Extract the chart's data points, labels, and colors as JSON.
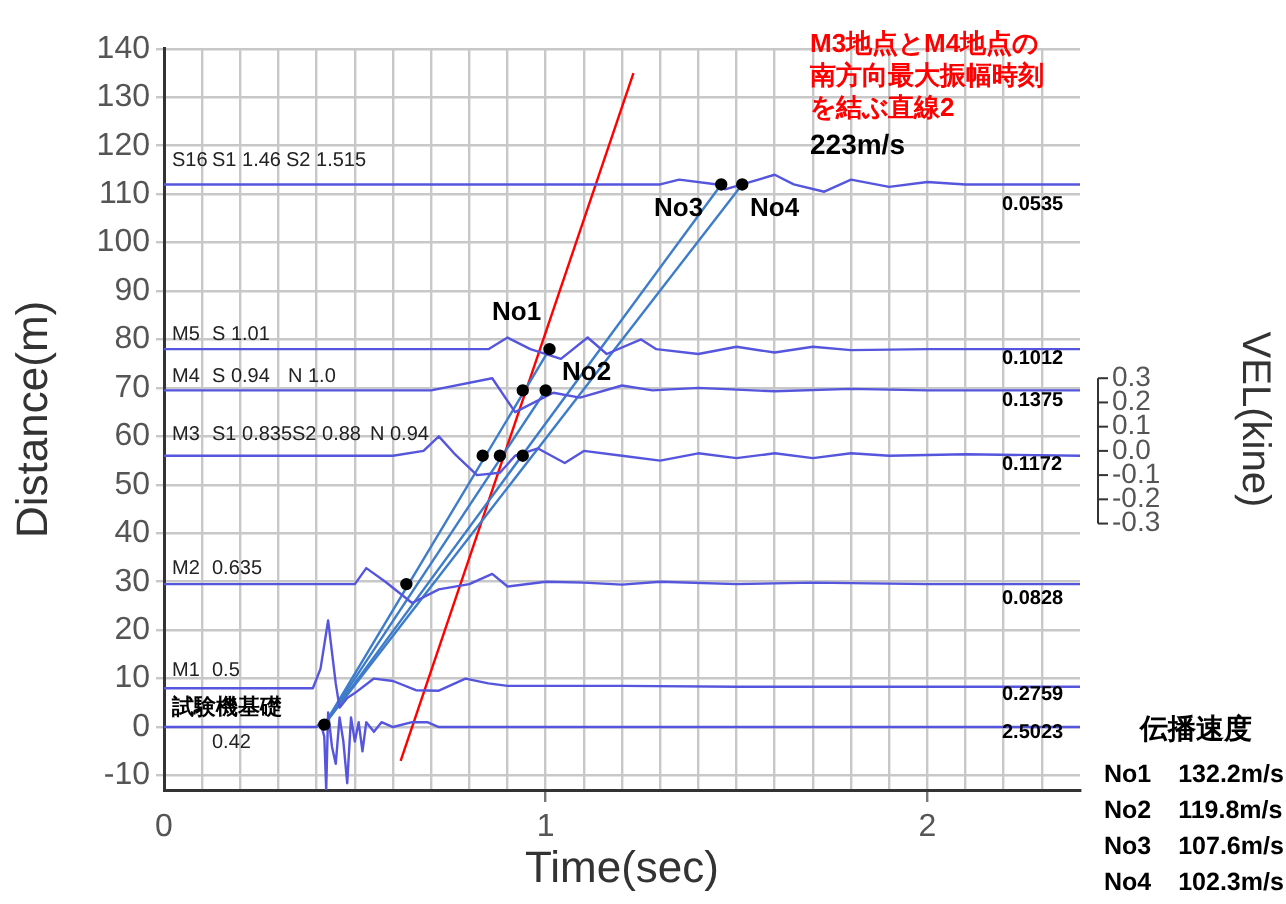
{
  "chart_data": {
    "type": "line",
    "xlabel": "Time(sec)",
    "ylabel": "Distance(m)",
    "y2label": "VEL(kine)",
    "xlim": [
      0,
      2.4
    ],
    "ylim": [
      -13,
      140
    ],
    "y2lim": [
      -1.4,
      1.66
    ],
    "xticks": [
      0,
      {
        "value": 0.1,
        "label": null
      },
      {
        "value": 0.2,
        "label": null
      },
      {
        "value": 0.3,
        "label": null
      },
      {
        "value": 0.4,
        "label": null
      },
      {
        "value": 0.5,
        "label": null
      },
      {
        "value": 0.6,
        "label": null
      },
      {
        "value": 0.7,
        "label": null
      },
      {
        "value": 0.8,
        "label": null
      },
      {
        "value": 0.9,
        "label": null
      },
      1,
      {
        "value": 1.1,
        "label": null
      },
      {
        "value": 1.2,
        "label": null
      },
      {
        "value": 1.3,
        "label": null
      },
      {
        "value": 1.4,
        "label": null
      },
      {
        "value": 1.5,
        "label": null
      },
      {
        "value": 1.6,
        "label": null
      },
      {
        "value": 1.7,
        "label": null
      },
      {
        "value": 1.8,
        "label": null
      },
      {
        "value": 1.9,
        "label": null
      },
      2,
      {
        "value": 2.1,
        "label": null
      },
      {
        "value": 2.2,
        "label": null
      },
      {
        "value": 2.3,
        "label": null
      }
    ],
    "yticks": [
      -10,
      0,
      10,
      20,
      30,
      40,
      50,
      60,
      70,
      80,
      90,
      100,
      110,
      120,
      130,
      140
    ],
    "y2ticks": [
      0.3,
      0.2,
      0.1,
      {
        "value": 0,
        "label": "0.0"
      },
      -0.1,
      -0.2,
      -0.3
    ],
    "grid": true,
    "legend": false,
    "marker": "none",
    "line_style": "solid",
    "series": [
      {
        "color": "#5555dd",
        "x": [
          0,
          0.4,
          0.41,
          0.42,
          0.425,
          0.43,
          0.44,
          0.45,
          0.46,
          0.47,
          0.48,
          0.49,
          0.5,
          0.51,
          0.52,
          0.53,
          0.55,
          0.57,
          0.6,
          0.65,
          0.69,
          0.72,
          0.75,
          2.4
        ],
        "values": [
          0,
          0,
          1,
          -2,
          -13,
          3,
          -4,
          -7.6,
          2,
          -3,
          -11.6,
          2,
          -3,
          1,
          -5,
          1,
          -1,
          1,
          0,
          1,
          1,
          0,
          0,
          0
        ]
      },
      {
        "color": "#5555dd",
        "x": [
          0,
          0.39,
          0.41,
          0.43,
          0.45,
          0.46,
          0.48,
          0.5,
          0.55,
          0.6,
          0.66,
          0.72,
          0.79,
          0.85,
          0.9,
          1.0,
          1.2,
          1.5,
          2.4
        ],
        "values": [
          8,
          8,
          12,
          22,
          9,
          4,
          6,
          7,
          10,
          9.5,
          7.6,
          7.5,
          10,
          9,
          8.5,
          8.5,
          8.5,
          8.3,
          8.3
        ]
      },
      {
        "color": "#5555dd",
        "x": [
          0,
          0.5,
          0.53,
          0.58,
          0.65,
          0.72,
          0.8,
          0.86,
          0.9,
          1.0,
          1.1,
          1.2,
          1.3,
          1.5,
          1.7,
          2.0,
          2.4
        ],
        "values": [
          29.5,
          29.5,
          32.8,
          30,
          25.6,
          28.4,
          29.5,
          31.6,
          29,
          30,
          29.8,
          29.4,
          30,
          29.5,
          29.8,
          29.5,
          29.5
        ]
      },
      {
        "color": "#5555dd",
        "x": [
          0,
          0.6,
          0.68,
          0.72,
          0.76,
          0.82,
          0.88,
          0.92,
          0.98,
          1.05,
          1.1,
          1.2,
          1.3,
          1.4,
          1.5,
          1.6,
          1.7,
          1.8,
          1.9,
          2.1,
          2.4
        ],
        "values": [
          56,
          56,
          57,
          60,
          56.5,
          52,
          52.5,
          56,
          57.5,
          54.5,
          57,
          56,
          55,
          56.5,
          55.5,
          56.5,
          55.5,
          56.5,
          56,
          56.3,
          56
        ]
      },
      {
        "color": "#5555dd",
        "x": [
          0,
          0.7,
          0.86,
          0.92,
          0.97,
          1.02,
          1.09,
          1.2,
          1.28,
          1.4,
          1.6,
          1.8,
          2.0,
          2.4
        ],
        "values": [
          69.5,
          69.5,
          72,
          65,
          67,
          69,
          68,
          70.5,
          69.5,
          70,
          69.3,
          69.8,
          69.5,
          69.5
        ]
      },
      {
        "color": "#5555dd",
        "x": [
          0,
          0.85,
          0.9,
          0.96,
          1.04,
          1.11,
          1.16,
          1.25,
          1.29,
          1.4,
          1.5,
          1.6,
          1.7,
          1.8,
          2.0,
          2.4
        ],
        "values": [
          78,
          78,
          80.4,
          78,
          76,
          80.4,
          77,
          80,
          78,
          77,
          78.5,
          77.3,
          78.5,
          77.8,
          78,
          78
        ]
      },
      {
        "color": "#5555dd",
        "x": [
          0,
          1.3,
          1.35,
          1.45,
          1.47,
          1.6,
          1.65,
          1.73,
          1.8,
          1.9,
          2.0,
          2.1,
          2.4
        ],
        "values": [
          112,
          112,
          113,
          112,
          111,
          114,
          112,
          110.5,
          113,
          111.5,
          112.5,
          112,
          112
        ]
      },
      {
        "color": "#3d7cc9",
        "x": [
          0.42,
          1.01
        ],
        "values": [
          0.5,
          78
        ]
      },
      {
        "color": "#3d7cc9",
        "x": [
          0.42,
          1.0
        ],
        "values": [
          0.5,
          69.5
        ]
      },
      {
        "color": "#3d7cc9",
        "x": [
          0.42,
          1.46
        ],
        "values": [
          0.5,
          112
        ]
      },
      {
        "color": "#3d7cc9",
        "x": [
          0.42,
          1.515
        ],
        "values": [
          0.5,
          112
        ]
      },
      {
        "color": "#ff0000",
        "x": [
          0.62,
          1.23
        ],
        "values": [
          -7,
          135
        ]
      },
      {
        "type": "scatter",
        "color": "#000000",
        "marker": "circle",
        "x": [
          0.42,
          0.635,
          0.835,
          0.88,
          0.94,
          0.94,
          1.0,
          1.01,
          1.46,
          1.515
        ],
        "values": [
          0.5,
          29.5,
          56,
          56,
          56,
          69.5,
          69.5,
          78,
          112,
          112
        ]
      }
    ],
    "annotations": [
      "M3地点とM4地点の南方向最大振幅時刻を結ぶ直線2",
      "223m/s",
      "No1",
      "No2",
      "No3",
      "No4",
      "S16",
      "S1 1.46",
      "S2 1.515",
      "M5",
      "S 1.01",
      "M4",
      "S 0.94",
      "N 1.0",
      "M3",
      "S1 0.835",
      "S2 0.88",
      "N 0.94",
      "M2",
      "0.635",
      "M1",
      "0.5",
      "試験機基礎",
      "0.42",
      "0.0535",
      "0.1012",
      "0.1375",
      "0.1172",
      "0.0828",
      "0.2759",
      "2.5023",
      "伝播速度",
      "No1 132.2m/s",
      "No2 119.8m/s",
      "No3 107.6m/s",
      "No4 102.3m/s"
    ]
  }
}
